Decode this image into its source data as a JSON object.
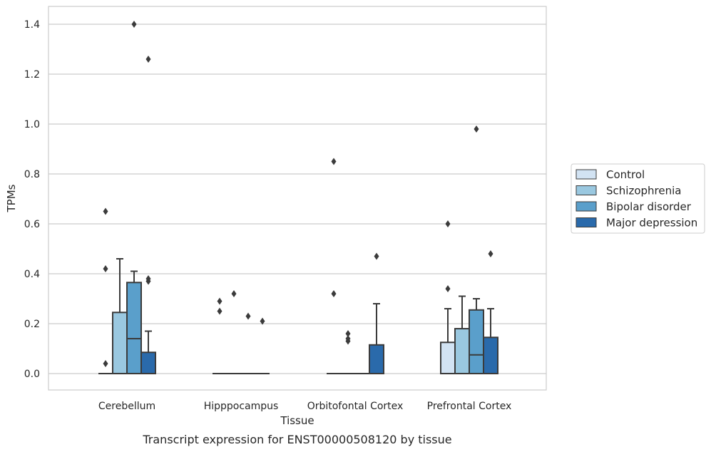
{
  "chart_data": {
    "type": "box",
    "title": "",
    "caption": "Transcript expression for ENST00000508120 by tissue",
    "xlabel": "Tissue",
    "ylabel": "TPMs",
    "ylim": [
      -0.07,
      1.47
    ],
    "yticks": [
      "0.0",
      "0.2",
      "0.4",
      "0.6",
      "0.8",
      "1.0",
      "1.2",
      "1.4"
    ],
    "grid": "horizontal",
    "legend_position": "right",
    "categories": [
      "Cerebellum",
      "Hipppocampus",
      "Orbitofontal Cortex",
      "Prefrontal Cortex"
    ],
    "series": [
      {
        "name": "Control",
        "color": "#d2e3f3",
        "boxes": [
          {
            "q1": 0,
            "median": 0,
            "q3": 0,
            "whisker_low": 0,
            "whisker_high": 0,
            "outliers": [
              0.04,
              0.42,
              0.65
            ]
          },
          {
            "q1": 0,
            "median": 0,
            "q3": 0,
            "whisker_low": 0,
            "whisker_high": 0,
            "outliers": [
              0.25,
              0.29
            ]
          },
          {
            "q1": 0,
            "median": 0,
            "q3": 0,
            "whisker_low": 0,
            "whisker_high": 0,
            "outliers": [
              0.32,
              0.85
            ]
          },
          {
            "q1": 0,
            "median": 0,
            "q3": 0.125,
            "whisker_low": 0,
            "whisker_high": 0.26,
            "outliers": [
              0.34,
              0.6
            ]
          }
        ]
      },
      {
        "name": "Schizophrenia",
        "color": "#9ac8e0",
        "boxes": [
          {
            "q1": 0,
            "median": 0,
            "q3": 0.245,
            "whisker_low": 0,
            "whisker_high": 0.46,
            "outliers": []
          },
          {
            "q1": 0,
            "median": 0,
            "q3": 0,
            "whisker_low": 0,
            "whisker_high": 0,
            "outliers": [
              0.32
            ]
          },
          {
            "q1": 0,
            "median": 0,
            "q3": 0,
            "whisker_low": 0,
            "whisker_high": 0,
            "outliers": [
              0.13,
              0.14,
              0.16
            ]
          },
          {
            "q1": 0,
            "median": 0,
            "q3": 0.18,
            "whisker_low": 0,
            "whisker_high": 0.31,
            "outliers": []
          }
        ]
      },
      {
        "name": "Bipolar disorder",
        "color": "#5a9fcb",
        "boxes": [
          {
            "q1": 0,
            "median": 0.14,
            "q3": 0.365,
            "whisker_low": 0,
            "whisker_high": 0.41,
            "outliers": [
              1.4
            ]
          },
          {
            "q1": 0,
            "median": 0,
            "q3": 0,
            "whisker_low": 0,
            "whisker_high": 0,
            "outliers": [
              0.23
            ]
          },
          {
            "q1": 0,
            "median": 0,
            "q3": 0,
            "whisker_low": 0,
            "whisker_high": 0,
            "outliers": []
          },
          {
            "q1": 0,
            "median": 0.075,
            "q3": 0.255,
            "whisker_low": 0,
            "whisker_high": 0.3,
            "outliers": [
              0.98
            ]
          }
        ]
      },
      {
        "name": "Major depression",
        "color": "#2a6aab",
        "boxes": [
          {
            "q1": 0,
            "median": 0,
            "q3": 0.085,
            "whisker_low": 0,
            "whisker_high": 0.17,
            "outliers": [
              0.37,
              0.38,
              1.26
            ]
          },
          {
            "q1": 0,
            "median": 0,
            "q3": 0,
            "whisker_low": 0,
            "whisker_high": 0,
            "outliers": [
              0.21
            ]
          },
          {
            "q1": 0,
            "median": 0,
            "q3": 0.115,
            "whisker_low": 0,
            "whisker_high": 0.28,
            "outliers": [
              0.47
            ]
          },
          {
            "q1": 0,
            "median": 0,
            "q3": 0.145,
            "whisker_low": 0,
            "whisker_high": 0.26,
            "outliers": [
              0.48
            ]
          }
        ]
      }
    ]
  }
}
